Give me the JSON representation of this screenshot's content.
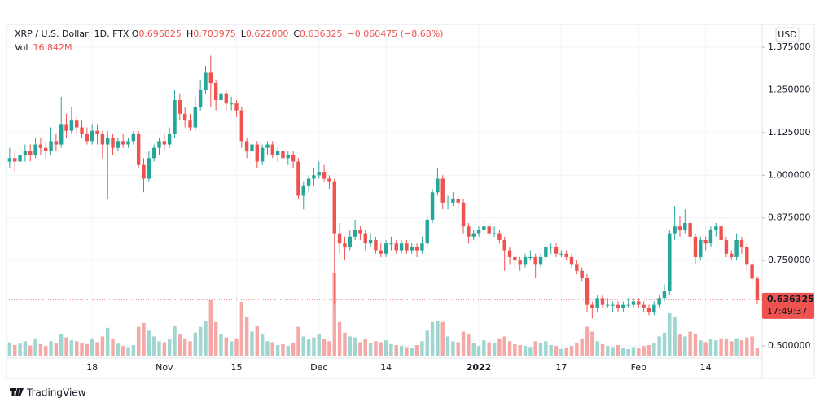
{
  "chart_data": {
    "type": "candlestick",
    "header": {
      "symbol": "XRP / U.S. Dollar, 1D, FTX",
      "fields": [
        {
          "key": "O",
          "text": "0.696825"
        },
        {
          "key": "H",
          "text": "0.703975"
        },
        {
          "key": "L",
          "text": "0.622000"
        },
        {
          "key": "C",
          "text": "0.636325"
        }
      ],
      "change": "−0.060475 (−8.68%)",
      "vol_key": "Vol",
      "vol": "16.842M"
    },
    "currency": "USD",
    "countdown": "17:49:37",
    "brand": "TradingView",
    "up_color": "#26a69a",
    "down_color": "#ef5350",
    "up_volume_color": "#9fd6d0",
    "down_volume_color": "#f5a9a7",
    "grid": true,
    "xlim": [
      -0.3,
      145.8
    ],
    "xticks": [
      {
        "value": 16,
        "label": "18"
      },
      {
        "value": 30,
        "label": "Nov"
      },
      {
        "value": 44,
        "label": "15"
      },
      {
        "value": 60,
        "label": "Dec"
      },
      {
        "value": 73,
        "label": "14"
      },
      {
        "value": 91,
        "label": "2022"
      },
      {
        "value": 107,
        "label": "17"
      },
      {
        "value": 122,
        "label": "Feb"
      },
      {
        "value": 135,
        "label": "14"
      }
    ],
    "ylim": [
      0.475,
      1.4
    ],
    "yticks": [
      {
        "value": 0.5,
        "label": "0.500000"
      },
      {
        "value": 0.75,
        "label": "0.750000"
      },
      {
        "value": 0.875,
        "label": "0.875000"
      },
      {
        "value": 1,
        "label": "1.000000"
      },
      {
        "value": 1.125,
        "label": "1.125000"
      },
      {
        "value": 1.25,
        "label": "1.250000"
      },
      {
        "value": 1.375,
        "label": "1.375000"
      }
    ],
    "candles": [
      [
        1.04,
        1.08,
        1.02,
        1.05,
        28
      ],
      [
        1.05,
        1.07,
        1.01,
        1.04,
        22
      ],
      [
        1.04,
        1.08,
        1.03,
        1.06,
        25
      ],
      [
        1.06,
        1.09,
        1.04,
        1.07,
        30
      ],
      [
        1.07,
        1.09,
        1.04,
        1.06,
        21
      ],
      [
        1.06,
        1.11,
        1.05,
        1.09,
        36
      ],
      [
        1.09,
        1.11,
        1.06,
        1.08,
        24
      ],
      [
        1.08,
        1.1,
        1.05,
        1.07,
        20
      ],
      [
        1.07,
        1.14,
        1.06,
        1.1,
        30
      ],
      [
        1.1,
        1.12,
        1.07,
        1.09,
        26
      ],
      [
        1.09,
        1.23,
        1.08,
        1.15,
        45
      ],
      [
        1.15,
        1.18,
        1.11,
        1.13,
        38
      ],
      [
        1.13,
        1.2,
        1.12,
        1.16,
        32
      ],
      [
        1.16,
        1.17,
        1.12,
        1.14,
        30
      ],
      [
        1.14,
        1.16,
        1.11,
        1.12,
        26
      ],
      [
        1.12,
        1.14,
        1.09,
        1.1,
        24
      ],
      [
        1.1,
        1.15,
        1.09,
        1.13,
        36
      ],
      [
        1.13,
        1.15,
        1.09,
        1.12,
        28
      ],
      [
        1.12,
        1.13,
        1.05,
        1.09,
        40
      ],
      [
        1.09,
        1.13,
        0.93,
        1.11,
        58
      ],
      [
        1.11,
        1.12,
        1.06,
        1.08,
        34
      ],
      [
        1.08,
        1.11,
        1.07,
        1.1,
        25
      ],
      [
        1.1,
        1.12,
        1.08,
        1.09,
        20
      ],
      [
        1.09,
        1.11,
        1.08,
        1.1,
        18
      ],
      [
        1.1,
        1.13,
        1.09,
        1.12,
        22
      ],
      [
        1.12,
        1.13,
        1.02,
        1.03,
        60
      ],
      [
        1.03,
        1.05,
        0.95,
        0.99,
        68
      ],
      [
        0.99,
        1.07,
        0.98,
        1.05,
        52
      ],
      [
        1.05,
        1.09,
        1.04,
        1.08,
        40
      ],
      [
        1.08,
        1.11,
        1.06,
        1.1,
        30
      ],
      [
        1.1,
        1.12,
        1.07,
        1.09,
        28
      ],
      [
        1.09,
        1.14,
        1.08,
        1.12,
        34
      ],
      [
        1.12,
        1.25,
        1.11,
        1.22,
        62
      ],
      [
        1.22,
        1.24,
        1.16,
        1.18,
        44
      ],
      [
        1.18,
        1.2,
        1.14,
        1.16,
        36
      ],
      [
        1.16,
        1.18,
        1.13,
        1.14,
        30
      ],
      [
        1.14,
        1.23,
        1.13,
        1.2,
        48
      ],
      [
        1.2,
        1.28,
        1.19,
        1.25,
        60
      ],
      [
        1.25,
        1.32,
        1.24,
        1.3,
        72
      ],
      [
        1.3,
        1.35,
        1.2,
        1.27,
        117
      ],
      [
        1.27,
        1.28,
        1.19,
        1.22,
        70
      ],
      [
        1.22,
        1.26,
        1.2,
        1.24,
        45
      ],
      [
        1.24,
        1.25,
        1.19,
        1.21,
        38
      ],
      [
        1.21,
        1.23,
        1.19,
        1.21,
        30
      ],
      [
        1.21,
        1.22,
        1.17,
        1.19,
        36
      ],
      [
        1.19,
        1.2,
        1.08,
        1.1,
        112
      ],
      [
        1.1,
        1.11,
        1.05,
        1.07,
        80
      ],
      [
        1.07,
        1.11,
        1.06,
        1.09,
        50
      ],
      [
        1.09,
        1.1,
        1.02,
        1.04,
        62
      ],
      [
        1.04,
        1.09,
        1.03,
        1.08,
        44
      ],
      [
        1.08,
        1.1,
        1.06,
        1.09,
        30
      ],
      [
        1.09,
        1.1,
        1.05,
        1.06,
        28
      ],
      [
        1.06,
        1.08,
        1.04,
        1.07,
        22
      ],
      [
        1.07,
        1.08,
        1.04,
        1.05,
        24
      ],
      [
        1.05,
        1.07,
        1.03,
        1.06,
        20
      ],
      [
        1.06,
        1.07,
        1.02,
        1.04,
        26
      ],
      [
        1.04,
        1.05,
        0.93,
        0.94,
        60
      ],
      [
        0.94,
        0.98,
        0.9,
        0.97,
        40
      ],
      [
        0.97,
        1.0,
        0.95,
        0.99,
        35
      ],
      [
        0.99,
        1.02,
        0.97,
        1.0,
        38
      ],
      [
        1.0,
        1.04,
        0.99,
        1.01,
        44
      ],
      [
        1.01,
        1.03,
        0.98,
        0.99,
        34
      ],
      [
        0.99,
        1.0,
        0.96,
        0.98,
        30
      ],
      [
        0.98,
        0.99,
        0.62,
        0.83,
        173
      ],
      [
        0.83,
        0.86,
        0.77,
        0.8,
        70
      ],
      [
        0.8,
        0.82,
        0.75,
        0.79,
        48
      ],
      [
        0.79,
        0.84,
        0.78,
        0.82,
        40
      ],
      [
        0.82,
        0.87,
        0.81,
        0.84,
        38
      ],
      [
        0.84,
        0.85,
        0.81,
        0.83,
        28
      ],
      [
        0.83,
        0.84,
        0.78,
        0.8,
        34
      ],
      [
        0.8,
        0.83,
        0.79,
        0.81,
        26
      ],
      [
        0.81,
        0.82,
        0.77,
        0.78,
        30
      ],
      [
        0.78,
        0.8,
        0.76,
        0.77,
        28
      ],
      [
        0.77,
        0.81,
        0.76,
        0.8,
        32
      ],
      [
        0.8,
        0.82,
        0.78,
        0.8,
        24
      ],
      [
        0.8,
        0.81,
        0.77,
        0.78,
        22
      ],
      [
        0.78,
        0.81,
        0.77,
        0.8,
        20
      ],
      [
        0.8,
        0.81,
        0.77,
        0.78,
        18
      ],
      [
        0.78,
        0.8,
        0.77,
        0.79,
        16
      ],
      [
        0.79,
        0.8,
        0.76,
        0.78,
        22
      ],
      [
        0.78,
        0.82,
        0.77,
        0.8,
        30
      ],
      [
        0.8,
        0.88,
        0.79,
        0.87,
        52
      ],
      [
        0.87,
        0.96,
        0.86,
        0.95,
        70
      ],
      [
        0.95,
        1.02,
        0.94,
        0.99,
        72
      ],
      [
        0.99,
        1.0,
        0.9,
        0.92,
        70
      ],
      [
        0.92,
        0.94,
        0.9,
        0.92,
        40
      ],
      [
        0.92,
        0.95,
        0.91,
        0.93,
        30
      ],
      [
        0.93,
        0.94,
        0.9,
        0.92,
        28
      ],
      [
        0.92,
        0.93,
        0.83,
        0.85,
        50
      ],
      [
        0.85,
        0.86,
        0.8,
        0.82,
        44
      ],
      [
        0.82,
        0.84,
        0.81,
        0.83,
        26
      ],
      [
        0.83,
        0.85,
        0.82,
        0.84,
        20
      ],
      [
        0.84,
        0.87,
        0.83,
        0.85,
        32
      ],
      [
        0.85,
        0.86,
        0.82,
        0.83,
        28
      ],
      [
        0.83,
        0.85,
        0.82,
        0.83,
        26
      ],
      [
        0.83,
        0.84,
        0.8,
        0.81,
        36
      ],
      [
        0.81,
        0.82,
        0.72,
        0.78,
        40
      ],
      [
        0.78,
        0.79,
        0.74,
        0.76,
        30
      ],
      [
        0.76,
        0.77,
        0.73,
        0.75,
        24
      ],
      [
        0.75,
        0.76,
        0.72,
        0.74,
        22
      ],
      [
        0.74,
        0.77,
        0.73,
        0.76,
        20
      ],
      [
        0.76,
        0.78,
        0.75,
        0.76,
        18
      ],
      [
        0.76,
        0.77,
        0.7,
        0.74,
        30
      ],
      [
        0.74,
        0.77,
        0.73,
        0.76,
        26
      ],
      [
        0.76,
        0.8,
        0.75,
        0.79,
        30
      ],
      [
        0.79,
        0.8,
        0.77,
        0.79,
        22
      ],
      [
        0.79,
        0.8,
        0.76,
        0.77,
        20
      ],
      [
        0.77,
        0.78,
        0.76,
        0.77,
        14
      ],
      [
        0.77,
        0.78,
        0.75,
        0.76,
        16
      ],
      [
        0.76,
        0.77,
        0.73,
        0.74,
        20
      ],
      [
        0.74,
        0.75,
        0.71,
        0.72,
        26
      ],
      [
        0.72,
        0.73,
        0.69,
        0.7,
        36
      ],
      [
        0.7,
        0.71,
        0.6,
        0.62,
        60
      ],
      [
        0.62,
        0.63,
        0.58,
        0.61,
        50
      ],
      [
        0.61,
        0.65,
        0.6,
        0.64,
        30
      ],
      [
        0.64,
        0.65,
        0.61,
        0.62,
        24
      ],
      [
        0.62,
        0.64,
        0.61,
        0.62,
        20
      ],
      [
        0.62,
        0.63,
        0.6,
        0.62,
        18
      ],
      [
        0.62,
        0.63,
        0.6,
        0.61,
        22
      ],
      [
        0.61,
        0.63,
        0.6,
        0.62,
        16
      ],
      [
        0.62,
        0.64,
        0.61,
        0.62,
        14
      ],
      [
        0.62,
        0.64,
        0.61,
        0.63,
        18
      ],
      [
        0.63,
        0.64,
        0.61,
        0.62,
        16
      ],
      [
        0.62,
        0.63,
        0.6,
        0.61,
        20
      ],
      [
        0.61,
        0.62,
        0.59,
        0.6,
        22
      ],
      [
        0.6,
        0.63,
        0.59,
        0.62,
        26
      ],
      [
        0.62,
        0.65,
        0.61,
        0.64,
        40
      ],
      [
        0.64,
        0.68,
        0.63,
        0.66,
        48
      ],
      [
        0.66,
        0.84,
        0.65,
        0.83,
        90
      ],
      [
        0.83,
        0.91,
        0.81,
        0.85,
        80
      ],
      [
        0.85,
        0.88,
        0.82,
        0.84,
        44
      ],
      [
        0.84,
        0.9,
        0.83,
        0.86,
        40
      ],
      [
        0.86,
        0.87,
        0.8,
        0.82,
        50
      ],
      [
        0.82,
        0.83,
        0.74,
        0.76,
        46
      ],
      [
        0.76,
        0.82,
        0.75,
        0.81,
        32
      ],
      [
        0.81,
        0.82,
        0.78,
        0.8,
        28
      ],
      [
        0.8,
        0.85,
        0.79,
        0.84,
        34
      ],
      [
        0.84,
        0.86,
        0.82,
        0.85,
        32
      ],
      [
        0.85,
        0.86,
        0.8,
        0.81,
        36
      ],
      [
        0.81,
        0.82,
        0.76,
        0.77,
        34
      ],
      [
        0.77,
        0.78,
        0.75,
        0.76,
        30
      ],
      [
        0.76,
        0.83,
        0.75,
        0.81,
        36
      ],
      [
        0.81,
        0.82,
        0.77,
        0.79,
        32
      ],
      [
        0.79,
        0.8,
        0.72,
        0.74,
        38
      ],
      [
        0.74,
        0.75,
        0.68,
        0.697,
        40
      ],
      [
        0.696825,
        0.703975,
        0.622,
        0.636325,
        16.842
      ]
    ]
  }
}
